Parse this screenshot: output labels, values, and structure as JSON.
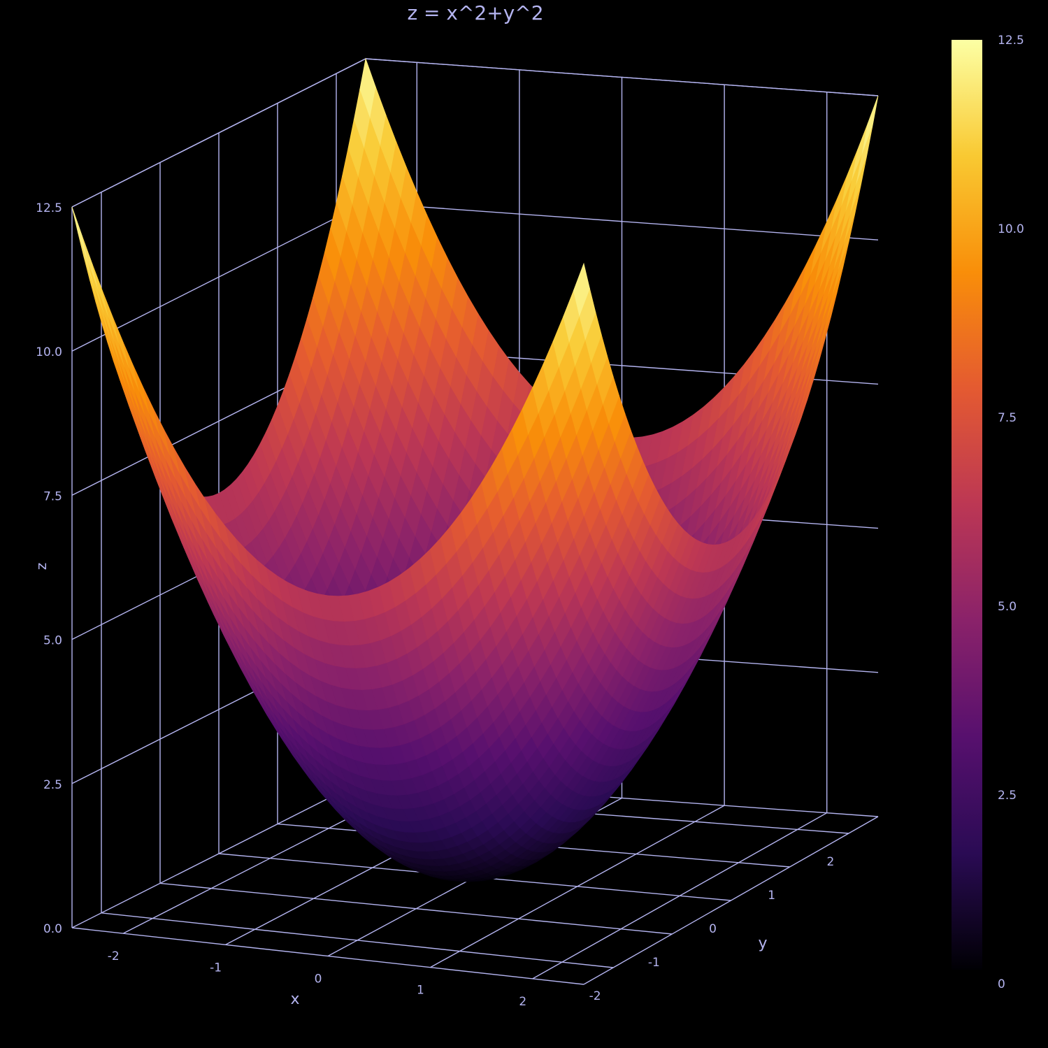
{
  "chart_data": {
    "type": "surface",
    "title": "z = x^2+y^2",
    "function": "x^2+y^2",
    "x_range": [
      -2.5,
      2.5
    ],
    "y_range": [
      -2.5,
      2.5
    ],
    "z_range": [
      0,
      12.5
    ],
    "xlabel": "x",
    "ylabel": "y",
    "zlabel": "z",
    "x_ticks": [
      "-2",
      "-1",
      "0",
      "1",
      "2"
    ],
    "x_tick_values": [
      -2,
      -1,
      0,
      1,
      2
    ],
    "y_ticks": [
      "-2",
      "-1",
      "0",
      "1",
      "2"
    ],
    "y_tick_values": [
      -2,
      -1,
      0,
      1,
      2
    ],
    "z_ticks": [
      "0.0",
      "2.5",
      "5.0",
      "7.5",
      "10.0",
      "12.5"
    ],
    "z_tick_values": [
      0,
      2.5,
      5,
      7.5,
      10,
      12.5
    ],
    "colorbar": {
      "min": 0,
      "max": 12.5,
      "ticks": [
        "0",
        "2.5",
        "5.0",
        "7.5",
        "10.0",
        "12.5"
      ],
      "tick_values": [
        0,
        2.5,
        5,
        7.5,
        10,
        12.5
      ]
    },
    "colorscale": "inferno",
    "colorscale_stops": [
      "#000004",
      "#2a0b54",
      "#57106e",
      "#8a226a",
      "#bc3754",
      "#e45a31",
      "#f98e09",
      "#f9c932",
      "#fcffa4"
    ],
    "grid": true,
    "background": "#000000",
    "axis_color": "#b4b4f0"
  }
}
